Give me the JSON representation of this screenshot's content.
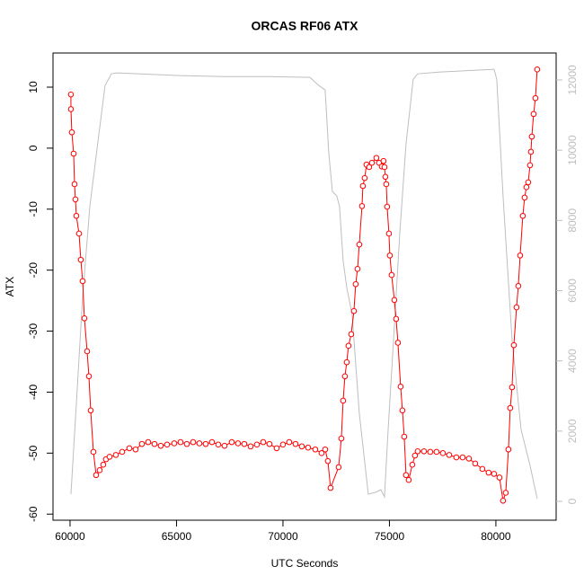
{
  "chart_data": {
    "type": "line",
    "title": "ORCAS RF06 ATX",
    "xlabel": "UTC Seconds",
    "ylabel": "ATX",
    "xlim": [
      59200,
      82830
    ],
    "ylim": [
      -61,
      15.6
    ],
    "y2lim": [
      -537,
      12767
    ],
    "xticks": [
      60000,
      65000,
      70000,
      75000,
      80000
    ],
    "yticks": [
      -60,
      -50,
      -40,
      -30,
      -20,
      -10,
      0,
      10
    ],
    "y2ticks": [
      0,
      2000,
      4000,
      6000,
      8000,
      10000,
      12000
    ],
    "y2color": "#bebebe",
    "series": [
      {
        "color": "#ff0000",
        "markers": true,
        "x": [
          60042,
          60042,
          60084,
          60169,
          60211,
          60253,
          60295,
          60422,
          60506,
          60591,
          60675,
          60802,
          60886,
          60970,
          61097,
          61224,
          61392,
          61561,
          61688,
          61856,
          62152,
          62447,
          62785,
          63080,
          63375,
          63671,
          63966,
          64261,
          64557,
          64894,
          65190,
          65485,
          65780,
          66075,
          66371,
          66666,
          66962,
          67257,
          67595,
          67890,
          68185,
          68480,
          68776,
          69071,
          69366,
          69704,
          69999,
          70294,
          70590,
          70885,
          71180,
          71518,
          71813,
          71982,
          72109,
          72235,
          72615,
          72741,
          72826,
          72910,
          72995,
          73079,
          73205,
          73332,
          73416,
          73501,
          73585,
          73712,
          73754,
          73838,
          73923,
          74049,
          74176,
          74387,
          74513,
          74640,
          74724,
          74767,
          74809,
          74851,
          74893,
          74977,
          75020,
          75104,
          75231,
          75315,
          75399,
          75526,
          75610,
          75695,
          75779,
          75906,
          76075,
          76201,
          76328,
          76623,
          76918,
          77214,
          77509,
          77805,
          78142,
          78438,
          78733,
          79028,
          79366,
          79661,
          79914,
          80168,
          80336,
          80463,
          80590,
          80674,
          80759,
          80843,
          80970,
          81054,
          81139,
          81265,
          81349,
          81434,
          81518,
          81603,
          81645,
          81687,
          81771,
          81856,
          81940
        ],
        "values": [
          8.8,
          6.4,
          2.6,
          -0.9,
          -5.9,
          -8.4,
          -11.1,
          -14.0,
          -18.3,
          -21.8,
          -27.9,
          -33.3,
          -37.4,
          -43.0,
          -49.8,
          -53.6,
          -52.8,
          -51.9,
          -51.0,
          -50.6,
          -50.3,
          -49.8,
          -49.2,
          -49.4,
          -48.5,
          -48.2,
          -48.5,
          -48.8,
          -48.6,
          -48.4,
          -48.2,
          -48.5,
          -48.2,
          -48.4,
          -48.5,
          -48.2,
          -48.6,
          -48.8,
          -48.2,
          -48.4,
          -48.5,
          -48.9,
          -48.6,
          -48.2,
          -48.5,
          -49.2,
          -48.6,
          -48.2,
          -48.5,
          -48.9,
          -49.1,
          -49.4,
          -50.0,
          -49.4,
          -51.3,
          -55.7,
          -52.3,
          -47.6,
          -41.4,
          -37.4,
          -35.1,
          -32.4,
          -30.5,
          -26.7,
          -22.3,
          -19.8,
          -15.8,
          -9.5,
          -6.2,
          -4.9,
          -2.7,
          -3.1,
          -2.4,
          -1.6,
          -2.4,
          -3.0,
          -2.1,
          -3.1,
          -4.7,
          -5.9,
          -9.6,
          -14.0,
          -17.6,
          -20.8,
          -24.9,
          -28.0,
          -31.9,
          -39.1,
          -43.0,
          -47.3,
          -53.6,
          -54.4,
          -51.9,
          -50.4,
          -49.7,
          -49.7,
          -49.8,
          -49.8,
          -50.0,
          -50.3,
          -50.7,
          -50.7,
          -50.9,
          -51.7,
          -52.6,
          -53.2,
          -53.4,
          -54.0,
          -57.8,
          -56.5,
          -49.4,
          -42.6,
          -39.2,
          -32.3,
          -26.1,
          -22.6,
          -17.6,
          -11.1,
          -8.1,
          -6.4,
          -5.6,
          -2.8,
          -0.6,
          1.9,
          5.6,
          8.2,
          12.9
        ]
      },
      {
        "color": "#bebebe",
        "axis": "y2",
        "x": [
          60042,
          60295,
          60591,
          60928,
          61350,
          61645,
          61941,
          62194,
          65148,
          67257,
          69366,
          71265,
          71687,
          71982,
          72151,
          72320,
          72530,
          72657,
          72826,
          72995,
          73248,
          73585,
          74007,
          74345,
          74598,
          74767,
          74935,
          75188,
          75484,
          75779,
          76117,
          76328,
          77383,
          79914,
          80041,
          80336,
          80759,
          81181,
          81603,
          81940
        ],
        "values": [
          205,
          2762,
          5831,
          8389,
          10435,
          11841,
          12174,
          12200,
          12123,
          12097,
          12097,
          12072,
          11841,
          11714,
          9923,
          8824,
          8696,
          8389,
          6854,
          6087,
          5320,
          2506,
          205,
          256,
          332,
          128,
          1995,
          4552,
          7621,
          10179,
          12020,
          12174,
          12225,
          12302,
          12020,
          8696,
          4604,
          2046,
          1023,
          77
        ]
      }
    ]
  }
}
